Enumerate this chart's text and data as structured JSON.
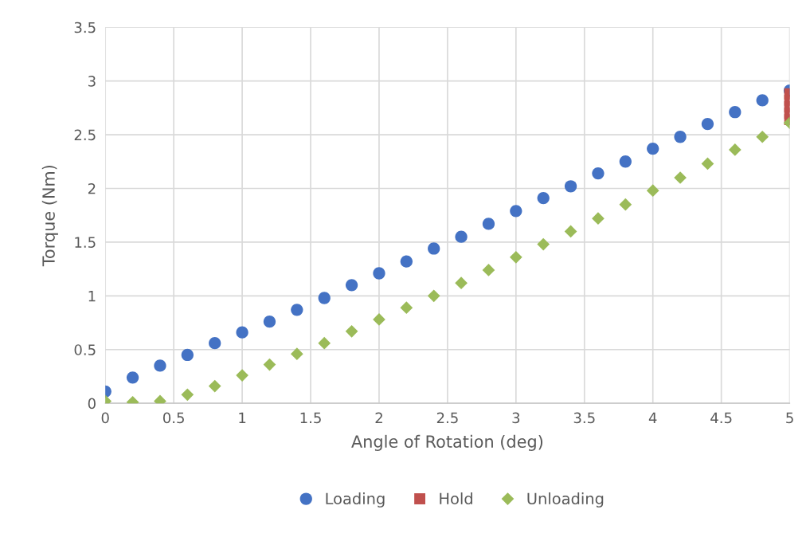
{
  "chart_data": {
    "type": "scatter",
    "xlabel": "Angle of Rotation (deg)",
    "ylabel": "Torque (Nm)",
    "xlim": [
      0,
      5
    ],
    "xticks": [
      0,
      0.5,
      1,
      1.5,
      2,
      2.5,
      3,
      3.5,
      4,
      4.5,
      5
    ],
    "ylim": [
      0,
      3.5
    ],
    "yticks": [
      0,
      0.5,
      1,
      1.5,
      2,
      2.5,
      3,
      3.5
    ],
    "grid": true,
    "legend": "bottom",
    "series": [
      {
        "name": "Loading",
        "color": "#4472c4",
        "marker": "circle",
        "x": [
          0,
          0.2,
          0.4,
          0.6,
          0.8,
          1.0,
          1.2,
          1.4,
          1.6,
          1.8,
          2.0,
          2.2,
          2.4,
          2.6,
          2.8,
          3.0,
          3.2,
          3.4,
          3.6,
          3.8,
          4.0,
          4.2,
          4.4,
          4.6,
          4.8,
          5.0
        ],
        "values": [
          0.11,
          0.24,
          0.35,
          0.45,
          0.56,
          0.66,
          0.76,
          0.87,
          0.98,
          1.1,
          1.21,
          1.32,
          1.44,
          1.55,
          1.67,
          1.79,
          1.91,
          2.02,
          2.14,
          2.25,
          2.37,
          2.48,
          2.6,
          2.71,
          2.82,
          2.91
        ]
      },
      {
        "name": "Hold",
        "color": "#c0504d",
        "marker": "square",
        "x": [
          5,
          5,
          5,
          5,
          5
        ],
        "values": [
          2.88,
          2.82,
          2.76,
          2.7,
          2.64
        ]
      },
      {
        "name": "Unloading",
        "color": "#9bbb59",
        "marker": "diamond",
        "x": [
          5.0,
          4.8,
          4.6,
          4.4,
          4.2,
          4.0,
          3.8,
          3.6,
          3.4,
          3.2,
          3.0,
          2.8,
          2.6,
          2.4,
          2.2,
          2.0,
          1.8,
          1.6,
          1.4,
          1.2,
          1.0,
          0.8,
          0.6,
          0.4,
          0.2,
          0
        ],
        "values": [
          2.61,
          2.48,
          2.36,
          2.23,
          2.1,
          1.98,
          1.85,
          1.72,
          1.6,
          1.48,
          1.36,
          1.24,
          1.12,
          1.0,
          0.89,
          0.78,
          0.67,
          0.56,
          0.46,
          0.36,
          0.26,
          0.16,
          0.08,
          0.02,
          0.01,
          0.02
        ]
      }
    ]
  }
}
